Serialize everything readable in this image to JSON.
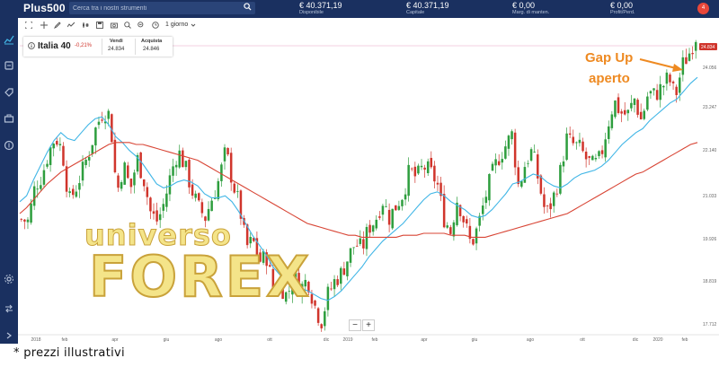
{
  "app": {
    "logo": "Plus500"
  },
  "search": {
    "placeholder": "Cerca tra i nostri strumenti"
  },
  "header_stats": [
    {
      "value": "€ 40.371,19",
      "label": "Disponibile"
    },
    {
      "value": "€ 40.371,19",
      "label": "Capitale"
    },
    {
      "value": "€ 0,00",
      "label": "Marg. di manten."
    },
    {
      "value": "€ 0,00",
      "label": "Profit/Perd."
    }
  ],
  "notifications": {
    "count": "4"
  },
  "toolbar": {
    "period": "1 giorno"
  },
  "instrument": {
    "name": "Italia 40",
    "change": "-0,21%",
    "sell_label": "Vendi",
    "sell_value": "24.834",
    "buy_label": "Acquista",
    "buy_value": "24.846"
  },
  "annotation": {
    "line1": "Gap Up",
    "line2": "aperto"
  },
  "watermark": {
    "line1": "universo",
    "line2": "FOREX"
  },
  "footnote": "* prezzi illustrativi",
  "colors": {
    "header_bg": "#1a3060",
    "candle_up": "#2e9e3e",
    "candle_down": "#d0352c",
    "ma_fast": "#41b6e6",
    "ma_slow": "#d84535",
    "annotation": "#ee8a22"
  },
  "chart_data": {
    "type": "line",
    "series_style": "candlestick",
    "instrument": "Italia 40",
    "x_tick_labels": [
      "2018",
      "feb",
      "apr",
      "giu",
      "ago",
      "ott",
      "dic",
      "2019",
      "feb",
      "apr",
      "giu",
      "ago",
      "ott",
      "dic",
      "2020",
      "feb"
    ],
    "y_tick_labels": [
      "24.834",
      "24.056",
      "23.247",
      "22.140",
      "21.033",
      "19.926",
      "18.819",
      "17.712"
    ],
    "ylim": [
      17500,
      25000
    ],
    "current_price": "24.834",
    "series": [
      {
        "values": [
          20350,
          20300,
          21200,
          21450,
          22050,
          22450,
          22100,
          20800,
          21150,
          21600,
          22100,
          22700,
          23100,
          23000,
          21000,
          21750,
          21100,
          21900,
          21350,
          20500,
          20300,
          20800,
          21550,
          22100,
          21700,
          21100,
          20650,
          20400,
          20900,
          21350,
          22100,
          21300,
          20700,
          19650,
          19800,
          19300,
          19400,
          18550,
          18700,
          18400,
          18950,
          18600,
          18850,
          18200,
          17750,
          18450,
          18800,
          19000,
          19400,
          19750,
          19600,
          20150,
          20350,
          20850,
          20400,
          20700,
          21000,
          21600,
          21400,
          21700,
          21550,
          21300,
          20400,
          20050,
          20900,
          20300,
          19700,
          20150,
          20850,
          21450,
          21900,
          22200,
          22500,
          21150,
          21800,
          22100,
          21250,
          20450,
          20850,
          21450,
          22400,
          22250,
          22150,
          21850,
          21700,
          21900,
          22700,
          23350,
          23050,
          23000,
          23400,
          22850,
          23550,
          23500,
          23700,
          23950,
          23450,
          24250,
          24550,
          25000
        ]
      },
      {
        "values": [
          20800,
          20950,
          21350,
          21700,
          22050,
          22350,
          22550,
          22400,
          22350,
          22550,
          22750,
          22900,
          22950,
          22750,
          22450,
          22300,
          22100,
          21950,
          21750,
          21500,
          21250,
          21150,
          21200,
          21300,
          21350,
          21300,
          21200,
          21000,
          20900,
          20900,
          20950,
          20800,
          20550,
          20250,
          19950,
          19700,
          19450,
          19150,
          18950,
          18800,
          18700,
          18600,
          18550,
          18450,
          18350,
          18300,
          18400,
          18550,
          18750,
          18950,
          19150,
          19400,
          19600,
          19800,
          19950,
          20100,
          20250,
          20450,
          20650,
          20850,
          21000,
          21050,
          20950,
          20800,
          20700,
          20600,
          20450,
          20400,
          20450,
          20600,
          20800,
          21000,
          21250,
          21300,
          21400,
          21500,
          21450,
          21300,
          21200,
          21150,
          21250,
          21400,
          21500,
          21550,
          21600,
          21700,
          21850,
          22050,
          22250,
          22400,
          22550,
          22650,
          22850,
          23000,
          23150,
          23300,
          23400,
          23600,
          23800,
          23950
        ]
      },
      {
        "values": [
          20500,
          20650,
          20850,
          21050,
          21250,
          21400,
          21550,
          21650,
          21750,
          21850,
          21950,
          22050,
          22150,
          22250,
          22300,
          22300,
          22300,
          22250,
          22250,
          22200,
          22150,
          22100,
          22050,
          22000,
          21950,
          21900,
          21850,
          21750,
          21650,
          21550,
          21450,
          21350,
          21250,
          21150,
          21050,
          20950,
          20850,
          20750,
          20650,
          20550,
          20450,
          20350,
          20250,
          20200,
          20150,
          20100,
          20050,
          20000,
          19950,
          19950,
          19900,
          19900,
          19900,
          19900,
          19900,
          19900,
          19950,
          19950,
          19950,
          20000,
          20000,
          20000,
          20000,
          19950,
          19950,
          19950,
          19900,
          19900,
          19900,
          19950,
          20000,
          20050,
          20100,
          20150,
          20200,
          20250,
          20300,
          20350,
          20400,
          20450,
          20500,
          20600,
          20700,
          20800,
          20900,
          21000,
          21100,
          21200,
          21300,
          21400,
          21500,
          21550,
          21650,
          21750,
          21850,
          21950,
          22050,
          22150,
          22250,
          22300
        ]
      }
    ]
  }
}
